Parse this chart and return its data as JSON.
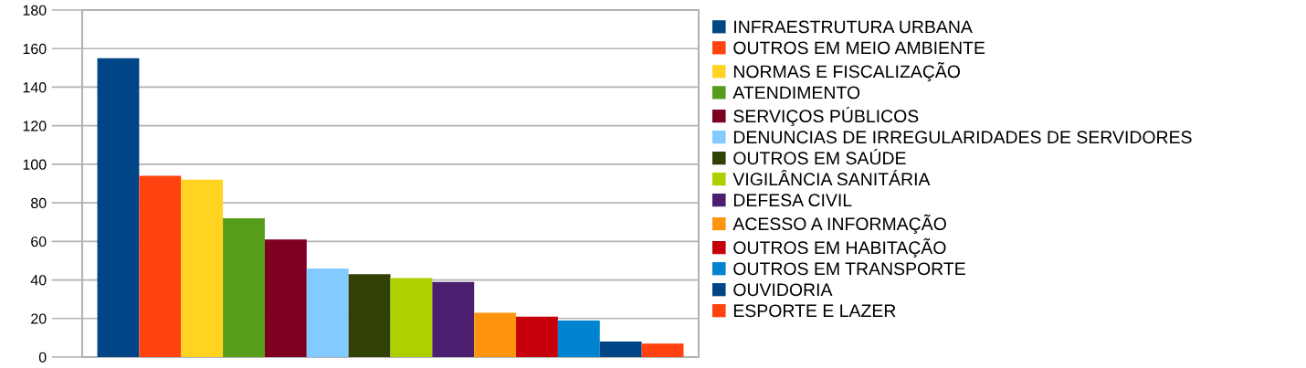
{
  "chart_data": {
    "type": "bar",
    "categories": [
      null
    ],
    "series": [
      {
        "name": "INFRAESTRUTURA URBANA",
        "color": "#004586",
        "values": [
          155
        ]
      },
      {
        "name": "OUTROS EM MEIO AMBIENTE",
        "color": "#ff420e",
        "values": [
          94
        ]
      },
      {
        "name": "NORMAS E FISCALIZAÇÃO",
        "color": "#ffd320",
        "values": [
          92
        ]
      },
      {
        "name": "ATENDIMENTO",
        "color": "#579d1c",
        "values": [
          72
        ]
      },
      {
        "name": "SERVIÇOS PÚBLICOS",
        "color": "#7e0021",
        "values": [
          61
        ]
      },
      {
        "name": "DENUNCIAS DE IRREGULARIDADES DE SERVIDORES",
        "color": "#83caff",
        "values": [
          46
        ]
      },
      {
        "name": "OUTROS EM SAÚDE",
        "color": "#314004",
        "values": [
          43
        ]
      },
      {
        "name": "VIGILÂNCIA SANITÁRIA",
        "color": "#aecf00",
        "values": [
          41
        ]
      },
      {
        "name": "DEFESA CIVIL",
        "color": "#4b1f6f",
        "values": [
          39
        ]
      },
      {
        "name": "ACESSO A INFORMAÇÃO",
        "color": "#ff950e",
        "values": [
          23
        ]
      },
      {
        "name": "OUTROS EM HABITAÇÃO",
        "color": "#c5000b",
        "values": [
          21
        ]
      },
      {
        "name": "OUTROS EM TRANSPORTE",
        "color": "#0084d1",
        "values": [
          19
        ]
      },
      {
        "name": "OUVIDORIA",
        "color": "#004586",
        "values": [
          8
        ]
      },
      {
        "name": "ESPORTE E LAZER",
        "color": "#ff420e",
        "values": [
          7
        ]
      }
    ],
    "ylim": [
      0,
      180
    ],
    "yticks": [
      0,
      20,
      40,
      60,
      80,
      100,
      120,
      140,
      160,
      180
    ],
    "grid": "y",
    "legend": "right"
  }
}
